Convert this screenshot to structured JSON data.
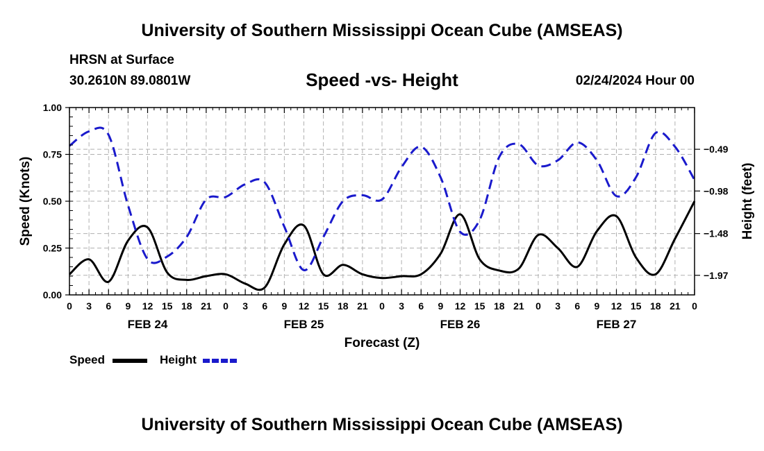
{
  "header": {
    "title": "University of Southern Mississippi Ocean Cube (AMSEAS)",
    "location_label": "HRSN at Surface",
    "coordinates": "30.2610N  89.0801W",
    "plot_title": "Speed -vs- Height",
    "datetime": "02/24/2024 Hour 00"
  },
  "footer": {
    "title": "University of Southern Mississippi Ocean Cube (AMSEAS)"
  },
  "colors": {
    "speed": "#000000",
    "height": "#1a1acc",
    "grid": "#b0b0b0"
  },
  "chart_data": {
    "type": "line",
    "xlabel": "Forecast (Z)",
    "ylabel": "Speed (Knots)",
    "y2label": "Height (feet)",
    "xlim": [
      0,
      96
    ],
    "ylim": [
      0,
      1.0
    ],
    "y2lim": [
      -2.2,
      -0.0
    ],
    "x_ticks": [
      0,
      3,
      6,
      9,
      12,
      15,
      18,
      21,
      24,
      27,
      30,
      33,
      36,
      39,
      42,
      45,
      48,
      51,
      54,
      57,
      60,
      63,
      66,
      69,
      72,
      75,
      78,
      81,
      84,
      87,
      90,
      93,
      96
    ],
    "x_tick_labels": [
      "0",
      "3",
      "6",
      "9",
      "12",
      "15",
      "18",
      "21",
      "0",
      "3",
      "6",
      "9",
      "12",
      "15",
      "18",
      "21",
      "0",
      "3",
      "6",
      "9",
      "12",
      "15",
      "18",
      "21",
      "0",
      "3",
      "6",
      "9",
      "12",
      "15",
      "18",
      "21",
      "0"
    ],
    "date_labels": [
      {
        "x": 12,
        "label": "FEB 24"
      },
      {
        "x": 36,
        "label": "FEB 25"
      },
      {
        "x": 60,
        "label": "FEB 26"
      },
      {
        "x": 84,
        "label": "FEB 27"
      }
    ],
    "y_ticks": [
      0,
      0.25,
      0.5,
      0.75,
      1.0
    ],
    "y_tick_labels": [
      "0.00",
      "0.25",
      "0.50",
      "0.75",
      "1.00"
    ],
    "y2_ticks": [
      -0.49,
      -0.98,
      -1.48,
      -1.97
    ],
    "y2_tick_labels": [
      "−0.49",
      "−0.98",
      "−1.48",
      "−1.97"
    ],
    "series": [
      {
        "name": "Speed",
        "axis": "left",
        "style": "solid",
        "x": [
          0,
          3,
          6,
          9,
          12,
          15,
          18,
          21,
          24,
          27,
          30,
          33,
          36,
          39,
          42,
          45,
          48,
          51,
          54,
          57,
          60,
          63,
          66,
          69,
          72,
          75,
          78,
          81,
          84,
          87,
          90,
          93,
          96
        ],
        "values": [
          0.11,
          0.19,
          0.07,
          0.29,
          0.36,
          0.12,
          0.08,
          0.1,
          0.11,
          0.06,
          0.04,
          0.27,
          0.37,
          0.11,
          0.16,
          0.11,
          0.09,
          0.1,
          0.11,
          0.22,
          0.43,
          0.19,
          0.13,
          0.14,
          0.32,
          0.25,
          0.15,
          0.34,
          0.42,
          0.2,
          0.11,
          0.3,
          0.5
        ]
      },
      {
        "name": "Height",
        "axis": "right",
        "style": "dashed",
        "x": [
          0,
          3,
          6,
          9,
          12,
          15,
          18,
          21,
          24,
          27,
          30,
          33,
          36,
          39,
          42,
          45,
          48,
          51,
          54,
          57,
          60,
          63,
          66,
          69,
          72,
          75,
          78,
          81,
          84,
          87,
          90,
          93,
          96
        ],
        "values": [
          -0.45,
          -0.28,
          -0.32,
          -1.15,
          -1.78,
          -1.75,
          -1.52,
          -1.08,
          -1.05,
          -0.9,
          -0.88,
          -1.4,
          -1.91,
          -1.52,
          -1.1,
          -1.03,
          -1.08,
          -0.7,
          -0.46,
          -0.82,
          -1.46,
          -1.32,
          -0.58,
          -0.43,
          -0.68,
          -0.62,
          -0.41,
          -0.62,
          -1.04,
          -0.82,
          -0.3,
          -0.46,
          -0.85
        ]
      }
    ],
    "legend": [
      {
        "label": "Speed",
        "series": "Speed"
      },
      {
        "label": "Height",
        "series": "Height"
      }
    ]
  }
}
